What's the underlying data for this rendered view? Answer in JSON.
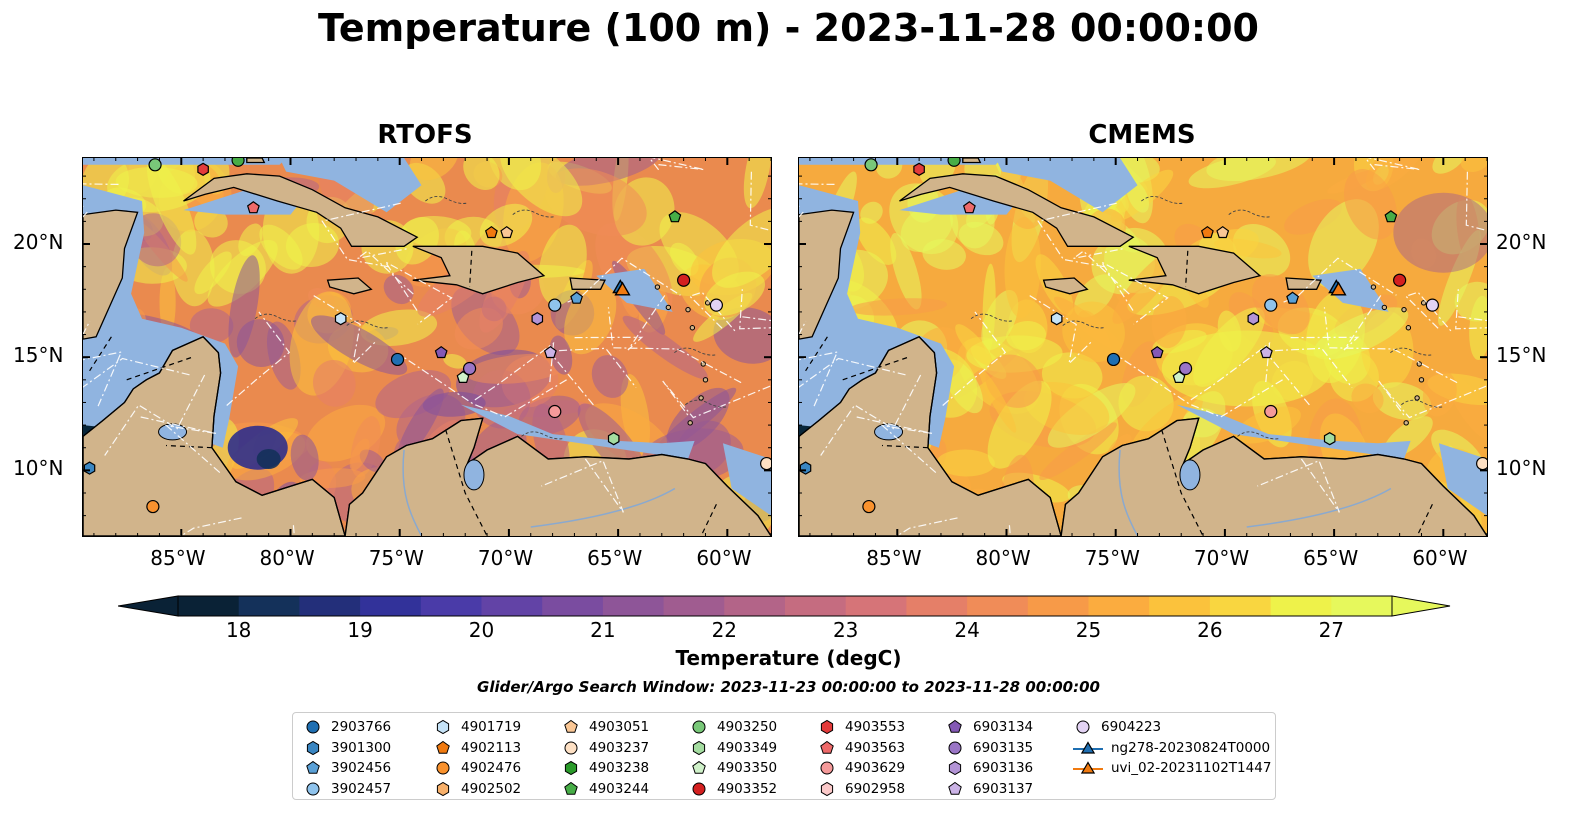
{
  "title": "Temperature (100 m) - 2023-11-28 00:00:00",
  "panels": [
    {
      "title": "RTOFS",
      "palette_bias": "warm_purple"
    },
    {
      "title": "CMEMS",
      "palette_bias": "warm_yellow"
    }
  ],
  "axes": {
    "lon_ticks": [
      "85°W",
      "80°W",
      "75°W",
      "70°W",
      "65°W",
      "60°W"
    ],
    "lat_ticks": [
      "20°N",
      "15°N",
      "10°N"
    ]
  },
  "colorbar": {
    "ticks": [
      "18",
      "19",
      "20",
      "21",
      "22",
      "23",
      "24",
      "25",
      "26",
      "27"
    ],
    "label": "Temperature (degC)",
    "colors": [
      "#0a2236",
      "#14315a",
      "#232f7a",
      "#32329a",
      "#4a3ba8",
      "#6243a6",
      "#7a4ca0",
      "#8e5598",
      "#a05c90",
      "#b36488",
      "#c56c80",
      "#d67478",
      "#e57f68",
      "#f08c58",
      "#f79a48",
      "#fbac3f",
      "#fbc23c",
      "#f9d640",
      "#eef24a",
      "#e6f85c"
    ]
  },
  "search_window": "Glider/Argo Search Window: 2023-11-23 00:00:00 to 2023-11-28 00:00:00",
  "legend": [
    {
      "label": "2903766",
      "marker": "circle",
      "color": "#1f6fb2"
    },
    {
      "label": "3901300",
      "marker": "hexagon",
      "color": "#3a86c2"
    },
    {
      "label": "3902456",
      "marker": "pentagon",
      "color": "#5aa0d6"
    },
    {
      "label": "3902457",
      "marker": "circle",
      "color": "#8fc3ec"
    },
    {
      "label": "4901719",
      "marker": "hexagon",
      "color": "#c6e3f7"
    },
    {
      "label": "4902113",
      "marker": "pentagon",
      "color": "#f07a10"
    },
    {
      "label": "4902476",
      "marker": "circle",
      "color": "#f9922e"
    },
    {
      "label": "4902502",
      "marker": "hexagon",
      "color": "#f8b06a"
    },
    {
      "label": "4903051",
      "marker": "pentagon",
      "color": "#fac795"
    },
    {
      "label": "4903237",
      "marker": "circle",
      "color": "#fde0c4"
    },
    {
      "label": "4903238",
      "marker": "hexagon",
      "color": "#2a9a2a"
    },
    {
      "label": "4903244",
      "marker": "pentagon",
      "color": "#47ad47"
    },
    {
      "label": "4903250",
      "marker": "circle",
      "color": "#79c879"
    },
    {
      "label": "4903349",
      "marker": "hexagon",
      "color": "#a4dca0"
    },
    {
      "label": "4903350",
      "marker": "pentagon",
      "color": "#cff1c9"
    },
    {
      "label": "4903352",
      "marker": "circle",
      "color": "#d42020"
    },
    {
      "label": "4903553",
      "marker": "hexagon",
      "color": "#e33b3b"
    },
    {
      "label": "4903563",
      "marker": "pentagon",
      "color": "#ee6a6a"
    },
    {
      "label": "4903629",
      "marker": "circle",
      "color": "#f59a9a"
    },
    {
      "label": "6902958",
      "marker": "hexagon",
      "color": "#fbc9c9"
    },
    {
      "label": "6903134",
      "marker": "pentagon",
      "color": "#8459b5"
    },
    {
      "label": "6903135",
      "marker": "circle",
      "color": "#9a75c6"
    },
    {
      "label": "6903136",
      "marker": "hexagon",
      "color": "#b394d6"
    },
    {
      "label": "6903137",
      "marker": "pentagon",
      "color": "#cbb3e6"
    },
    {
      "label": "6904223",
      "marker": "circle",
      "color": "#e3d3f4"
    },
    {
      "label": "ng278-20230824T0000",
      "marker": "triangle-line",
      "color": "#1f6fb2"
    },
    {
      "label": "uvi_02-20231102T1447",
      "marker": "triangle-line",
      "color": "#f07a10"
    }
  ],
  "markers": [
    {
      "lon": -86.2,
      "lat": 23.5,
      "marker": "circle",
      "color": "#79c879"
    },
    {
      "lon": -84.0,
      "lat": 23.3,
      "marker": "hexagon",
      "color": "#e33b3b"
    },
    {
      "lon": -82.4,
      "lat": 23.7,
      "marker": "circle",
      "color": "#47ad47"
    },
    {
      "lon": -81.7,
      "lat": 21.6,
      "marker": "pentagon",
      "color": "#ee6a6a"
    },
    {
      "lon": -70.8,
      "lat": 20.5,
      "marker": "pentagon",
      "color": "#f07a10"
    },
    {
      "lon": -70.1,
      "lat": 20.5,
      "marker": "pentagon",
      "color": "#fac795"
    },
    {
      "lon": -62.4,
      "lat": 21.2,
      "marker": "pentagon",
      "color": "#47ad47"
    },
    {
      "lon": -62.0,
      "lat": 18.4,
      "marker": "circle",
      "color": "#d42020"
    },
    {
      "lon": -67.9,
      "lat": 17.3,
      "marker": "circle",
      "color": "#8fc3ec"
    },
    {
      "lon": -66.9,
      "lat": 17.6,
      "marker": "pentagon",
      "color": "#5aa0d6"
    },
    {
      "lon": -64.9,
      "lat": 18.1,
      "marker": "triangle",
      "color": "#1f6fb2"
    },
    {
      "lon": -64.8,
      "lat": 18.0,
      "marker": "triangle",
      "color": "#f07a10"
    },
    {
      "lon": -60.5,
      "lat": 17.3,
      "marker": "circle",
      "color": "#e3d3f4"
    },
    {
      "lon": -77.7,
      "lat": 16.7,
      "marker": "hexagon",
      "color": "#c6e3f7"
    },
    {
      "lon": -68.7,
      "lat": 16.7,
      "marker": "hexagon",
      "color": "#b394d6"
    },
    {
      "lon": -75.1,
      "lat": 14.9,
      "marker": "circle",
      "color": "#1f6fb2"
    },
    {
      "lon": -73.1,
      "lat": 15.2,
      "marker": "pentagon",
      "color": "#8459b5"
    },
    {
      "lon": -68.1,
      "lat": 15.2,
      "marker": "pentagon",
      "color": "#cbb3e6"
    },
    {
      "lon": -71.8,
      "lat": 14.5,
      "marker": "circle",
      "color": "#9a75c6"
    },
    {
      "lon": -72.1,
      "lat": 14.1,
      "marker": "pentagon",
      "color": "#cff1c9"
    },
    {
      "lon": -67.9,
      "lat": 12.6,
      "marker": "circle",
      "color": "#f59a9a"
    },
    {
      "lon": -65.2,
      "lat": 11.4,
      "marker": "hexagon",
      "color": "#a4dca0"
    },
    {
      "lon": -58.2,
      "lat": 10.3,
      "marker": "circle",
      "color": "#fde0c4"
    },
    {
      "lon": -89.2,
      "lat": 10.1,
      "marker": "hexagon",
      "color": "#3a86c2"
    },
    {
      "lon": -86.3,
      "lat": 8.4,
      "marker": "circle",
      "color": "#f9922e"
    }
  ]
}
